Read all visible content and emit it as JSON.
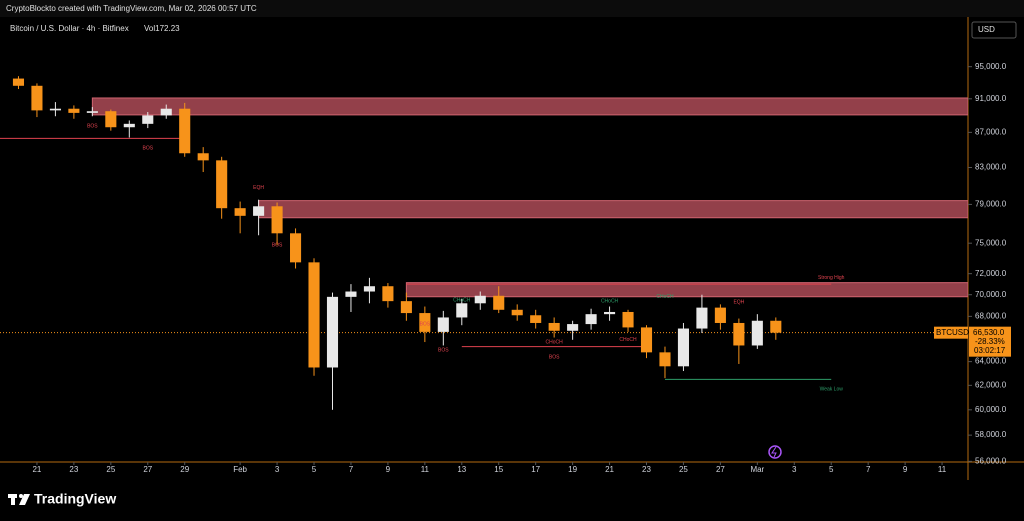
{
  "header": "CryptoBlockto created with TradingView.com, Mar 02, 2026 00:57 UTC",
  "logo": "TradingView",
  "chart_data": {
    "type": "candlestick",
    "title": "Bitcoin / U.S. Dollar · 4h · Bitfinex",
    "volume_label": "Vol172.23",
    "currency": "USD",
    "symbol": "BTCUSD",
    "last_price": 66530,
    "last_price_label": "66,530.0",
    "change_label": "-28.33%",
    "countdown": "03:02:17",
    "up_color": "#e8e8e8",
    "down_color": "#f7931a",
    "zone_color": "#b8505c",
    "log_scale": true,
    "grid": false,
    "x": [
      "2026-01-20",
      "2026-01-21",
      "2026-01-22",
      "2026-01-23",
      "2026-01-24",
      "2026-01-25",
      "2026-01-26",
      "2026-01-27",
      "2026-01-28",
      "2026-01-29",
      "2026-01-30",
      "2026-01-31",
      "2026-02-01",
      "2026-02-02",
      "2026-02-03",
      "2026-02-04",
      "2026-02-05",
      "2026-02-06",
      "2026-02-07",
      "2026-02-08",
      "2026-02-09",
      "2026-02-10",
      "2026-02-11",
      "2026-02-12",
      "2026-02-13",
      "2026-02-14",
      "2026-02-15",
      "2026-02-16",
      "2026-02-17",
      "2026-02-18",
      "2026-02-19",
      "2026-02-20",
      "2026-02-21",
      "2026-02-22",
      "2026-02-23",
      "2026-02-24",
      "2026-02-25",
      "2026-02-26",
      "2026-02-27",
      "2026-02-28",
      "2026-03-01",
      "2026-03-02"
    ],
    "open": [
      93500,
      92600,
      89600,
      89800,
      89300,
      89500,
      87600,
      88000,
      89000,
      89800,
      84600,
      83800,
      78600,
      77800,
      78800,
      76000,
      73100,
      63500,
      69800,
      70300,
      70800,
      69400,
      68300,
      66600,
      67900,
      69200,
      69900,
      68600,
      68100,
      67400,
      66700,
      67300,
      68200,
      68400,
      67000,
      64800,
      63600,
      66900,
      68800,
      67400,
      65400,
      67600
    ],
    "high": [
      93800,
      92900,
      90600,
      90200,
      90000,
      89700,
      88400,
      89400,
      90300,
      90500,
      85300,
      84200,
      79300,
      79500,
      79200,
      76500,
      73500,
      70200,
      71000,
      71600,
      71100,
      70200,
      68900,
      68500,
      69600,
      70300,
      70800,
      69100,
      68600,
      67900,
      67600,
      68700,
      68900,
      68600,
      67200,
      65300,
      67400,
      70000,
      69100,
      67800,
      68200,
      67900
    ],
    "low": [
      92200,
      88800,
      88900,
      88600,
      88900,
      87200,
      86400,
      87500,
      88600,
      84200,
      82500,
      77500,
      76000,
      75800,
      74800,
      72500,
      62800,
      60000,
      68400,
      69200,
      68800,
      67600,
      65700,
      65400,
      67200,
      68600,
      68300,
      67600,
      66900,
      66100,
      65900,
      66800,
      67600,
      66600,
      64300,
      62600,
      63200,
      66500,
      66800,
      63800,
      65100,
      65900
    ],
    "close": [
      92600,
      89600,
      89800,
      89300,
      89500,
      87600,
      88000,
      89000,
      89800,
      84600,
      83800,
      78600,
      77800,
      78800,
      76000,
      73100,
      63500,
      69800,
      70300,
      70800,
      69400,
      68300,
      66600,
      67900,
      69200,
      69900,
      68600,
      68100,
      67400,
      66700,
      67300,
      68200,
      68400,
      67000,
      64800,
      63600,
      66900,
      68800,
      67400,
      65400,
      67600,
      66530
    ],
    "xlim": [
      "2026-01-19",
      "2026-03-13"
    ],
    "xticks": [
      {
        "value": "2026-01-21",
        "label": "21"
      },
      {
        "value": "2026-01-23",
        "label": "23"
      },
      {
        "value": "2026-01-25",
        "label": "25"
      },
      {
        "value": "2026-01-27",
        "label": "27"
      },
      {
        "value": "2026-01-29",
        "label": "29"
      },
      {
        "value": "2026-02-01",
        "label": "Feb"
      },
      {
        "value": "2026-02-03",
        "label": "3"
      },
      {
        "value": "2026-02-05",
        "label": "5"
      },
      {
        "value": "2026-02-07",
        "label": "7"
      },
      {
        "value": "2026-02-09",
        "label": "9"
      },
      {
        "value": "2026-02-11",
        "label": "11"
      },
      {
        "value": "2026-02-13",
        "label": "13"
      },
      {
        "value": "2026-02-15",
        "label": "15"
      },
      {
        "value": "2026-02-17",
        "label": "17"
      },
      {
        "value": "2026-02-19",
        "label": "19"
      },
      {
        "value": "2026-02-21",
        "label": "21"
      },
      {
        "value": "2026-02-23",
        "label": "23"
      },
      {
        "value": "2026-02-25",
        "label": "25"
      },
      {
        "value": "2026-02-27",
        "label": "27"
      },
      {
        "value": "2026-03-01",
        "label": "Mar"
      },
      {
        "value": "2026-03-03",
        "label": "3"
      },
      {
        "value": "2026-03-05",
        "label": "5"
      },
      {
        "value": "2026-03-07",
        "label": "7"
      },
      {
        "value": "2026-03-09",
        "label": "9"
      },
      {
        "value": "2026-03-11",
        "label": "11"
      }
    ],
    "ylim": [
      55950,
      101400
    ],
    "yticks": [
      {
        "value": 95000,
        "label": "95,000.0"
      },
      {
        "value": 91000,
        "label": "91,000.0"
      },
      {
        "value": 87000,
        "label": "87,000.0"
      },
      {
        "value": 83000,
        "label": "83,000.0"
      },
      {
        "value": 79000,
        "label": "79,000.0"
      },
      {
        "value": 75000,
        "label": "75,000.0"
      },
      {
        "value": 72000,
        "label": "72,000.0"
      },
      {
        "value": 70000,
        "label": "70,000.0"
      },
      {
        "value": 68000,
        "label": "68,000.0"
      },
      {
        "value": 64000,
        "label": "64,000.0"
      },
      {
        "value": 62000,
        "label": "62,000.0"
      },
      {
        "value": 60000,
        "label": "60,000.0"
      },
      {
        "value": 58000,
        "label": "58,000.0"
      },
      {
        "value": 56000,
        "label": "56,000.0"
      }
    ],
    "zones": [
      {
        "start": "2026-01-24",
        "top": 91100,
        "bottom": 89060
      },
      {
        "start": "2026-02-02",
        "top": 79400,
        "bottom": 77600
      },
      {
        "start": "2026-02-10",
        "top": 71140,
        "bottom": 69810
      }
    ],
    "lines": [
      {
        "start": "2026-01-19",
        "end": "2026-01-29",
        "price": 86300,
        "color": "#e0434f"
      },
      {
        "start": "2026-02-13",
        "end": "2026-02-23",
        "price": 65300,
        "color": "#e0434f"
      },
      {
        "start": "2026-02-24",
        "end": "2026-03-05",
        "price": 62500,
        "color": "#2e9e6a"
      },
      {
        "start": "2026-02-10",
        "end": "2026-03-05",
        "price": 71000,
        "color": "#e0434f"
      }
    ],
    "annotations": [
      {
        "text": "BOS",
        "x": "2026-01-24",
        "y": 87700,
        "color": "#e0434f"
      },
      {
        "text": "BOS",
        "x": "2026-01-27",
        "y": 85200,
        "color": "#e0434f"
      },
      {
        "text": "EQH",
        "x": "2026-02-02",
        "y": 80800,
        "color": "#e0434f"
      },
      {
        "text": "BOS",
        "x": "2026-02-03",
        "y": 74800,
        "color": "#e0434f"
      },
      {
        "text": "BOS",
        "x": "2026-02-11",
        "y": 67300,
        "color": "#e0434f"
      },
      {
        "text": "BOS",
        "x": "2026-02-12",
        "y": 65000,
        "color": "#e0434f"
      },
      {
        "text": "CHoCH",
        "x": "2026-02-13",
        "y": 69500,
        "color": "#2e9e6a"
      },
      {
        "text": "BOS",
        "x": "2026-02-18",
        "y": 64400,
        "color": "#e0434f"
      },
      {
        "text": "CHoCH",
        "x": "2026-02-18",
        "y": 65700,
        "color": "#e0434f"
      },
      {
        "text": "CHoCH",
        "x": "2026-02-21",
        "y": 69400,
        "color": "#2e9e6a"
      },
      {
        "text": "CHoCH",
        "x": "2026-02-22",
        "y": 65900,
        "color": "#e0434f"
      },
      {
        "text": "CHoCH",
        "x": "2026-02-24",
        "y": 69800,
        "color": "#2e9e6a"
      },
      {
        "text": "EQH",
        "x": "2026-02-28",
        "y": 69300,
        "color": "#e0434f"
      },
      {
        "text": "Strong High",
        "x": "2026-03-05",
        "y": 71600,
        "color": "#e0434f"
      },
      {
        "text": "Weak Low",
        "x": "2026-03-05",
        "y": 61700,
        "color": "#2e9e6a"
      }
    ]
  }
}
